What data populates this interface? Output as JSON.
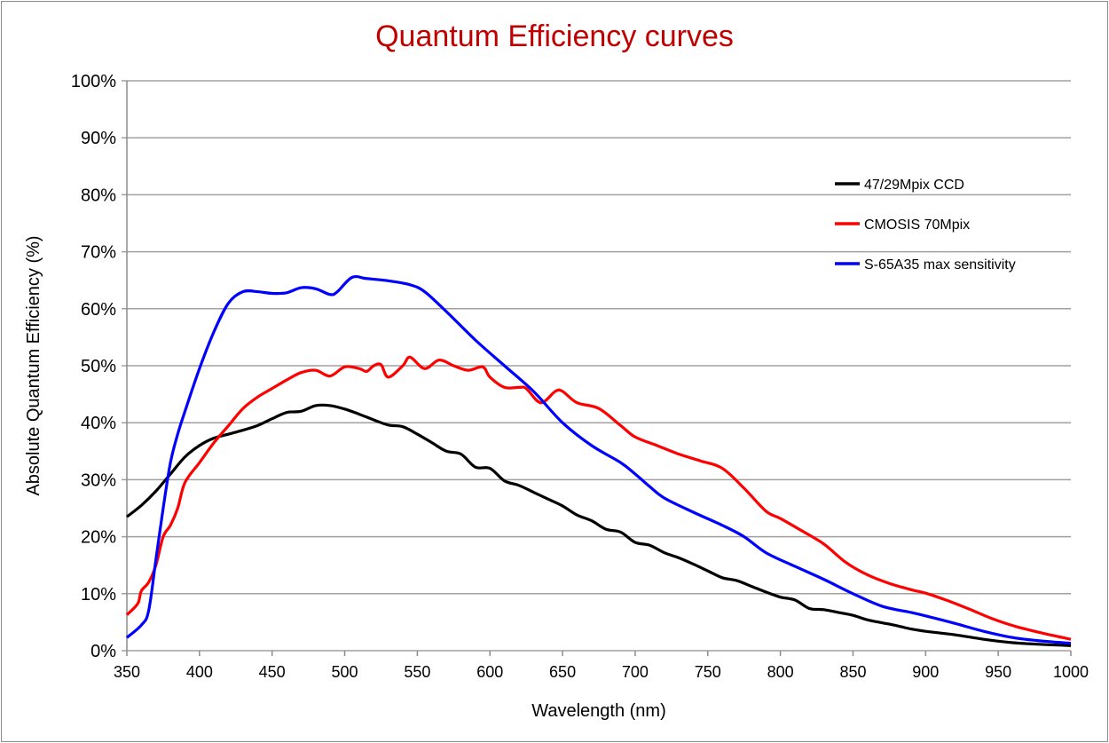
{
  "chart_data": {
    "type": "line",
    "title": "Quantum Efficiency curves",
    "xlabel": "Wavelength (nm)",
    "ylabel": "Absolute Quantum Efficiency (%)",
    "xlim": [
      350,
      1000
    ],
    "ylim": [
      0,
      100
    ],
    "x_ticks": [
      "350",
      "400",
      "450",
      "500",
      "550",
      "600",
      "650",
      "700",
      "750",
      "800",
      "850",
      "900",
      "950",
      "1000"
    ],
    "y_ticks": [
      "0%",
      "10%",
      "20%",
      "30%",
      "40%",
      "50%",
      "60%",
      "70%",
      "80%",
      "90%",
      "100%"
    ],
    "grid": "horizontal",
    "legend_position": "top-right",
    "title_color": "#c00000",
    "series": [
      {
        "name": "47/29Mpix CCD",
        "color": "#000000",
        "x": [
          350,
          360,
          370,
          380,
          390,
          400,
          410,
          420,
          430,
          440,
          450,
          460,
          470,
          480,
          490,
          500,
          510,
          520,
          530,
          540,
          550,
          560,
          570,
          580,
          590,
          600,
          610,
          620,
          630,
          640,
          650,
          660,
          670,
          680,
          690,
          700,
          710,
          720,
          730,
          740,
          750,
          760,
          770,
          780,
          790,
          800,
          810,
          820,
          830,
          840,
          850,
          860,
          870,
          880,
          890,
          900,
          920,
          940,
          960,
          980,
          1000
        ],
        "y": [
          23.5,
          25.5,
          28,
          31,
          34,
          36,
          37.3,
          38,
          38.7,
          39.5,
          40.7,
          41.8,
          42,
          43,
          43,
          42.4,
          41.5,
          40.5,
          39.6,
          39.3,
          38,
          36.5,
          35,
          34.5,
          32.2,
          32,
          29.8,
          29,
          27.8,
          26.6,
          25.4,
          23.8,
          22.8,
          21.3,
          20.8,
          19,
          18.5,
          17.2,
          16.3,
          15.2,
          14,
          12.8,
          12.3,
          11.3,
          10.3,
          9.4,
          8.9,
          7.4,
          7.2,
          6.7,
          6.2,
          5.4,
          4.9,
          4.4,
          3.8,
          3.4,
          2.8,
          2.0,
          1.4,
          1.1,
          0.9
        ]
      },
      {
        "name": "CMOSIS 70Mpix",
        "color": "#ff0000",
        "x": [
          350,
          355,
          358,
          360,
          365,
          370,
          375,
          380,
          385,
          390,
          400,
          410,
          420,
          430,
          440,
          450,
          460,
          470,
          480,
          490,
          500,
          510,
          515,
          520,
          525,
          530,
          540,
          545,
          555,
          565,
          575,
          585,
          595,
          600,
          610,
          620,
          625,
          635,
          645,
          650,
          660,
          675,
          690,
          700,
          715,
          730,
          745,
          760,
          775,
          790,
          800,
          815,
          830,
          845,
          860,
          875,
          890,
          900,
          915,
          930,
          945,
          960,
          980,
          1000
        ],
        "y": [
          6.3,
          7.5,
          8.5,
          10.5,
          12,
          15,
          20,
          22,
          25,
          29.5,
          33,
          36.5,
          39.5,
          42.5,
          44.5,
          46,
          47.5,
          48.8,
          49.2,
          48.2,
          49.8,
          49.5,
          49,
          50,
          50.2,
          48,
          50,
          51.5,
          49.5,
          51,
          50,
          49.2,
          49.8,
          48,
          46.2,
          46.2,
          46,
          43.5,
          45.5,
          45.5,
          43.5,
          42.5,
          39.5,
          37.5,
          36,
          34.5,
          33.3,
          32,
          28.5,
          24.5,
          23.2,
          21,
          18.7,
          15.5,
          13.3,
          11.8,
          10.7,
          10.1,
          8.8,
          7.3,
          5.7,
          4.4,
          3.1,
          2.0
        ]
      },
      {
        "name": "S-65A35 max sensitivity",
        "color": "#0000ff",
        "x": [
          350,
          360,
          365,
          370,
          375,
          380,
          385,
          390,
          400,
          410,
          420,
          430,
          440,
          450,
          460,
          470,
          480,
          490,
          495,
          505,
          515,
          530,
          545,
          555,
          570,
          590,
          610,
          630,
          650,
          670,
          690,
          700,
          710,
          720,
          740,
          760,
          775,
          790,
          810,
          830,
          850,
          870,
          890,
          900,
          920,
          940,
          960,
          980,
          1000
        ],
        "y": [
          2.3,
          4.5,
          7,
          16,
          25,
          33,
          38,
          42,
          49.5,
          56,
          61,
          63,
          63,
          62.7,
          62.8,
          63.7,
          63.5,
          62.5,
          63,
          65.5,
          65.3,
          64.9,
          64.2,
          63,
          59.5,
          54.5,
          50,
          45.5,
          40,
          36,
          33,
          31,
          28.8,
          26.8,
          24.3,
          22,
          20,
          17.2,
          14.8,
          12.5,
          10,
          7.8,
          6.7,
          6.1,
          4.8,
          3.4,
          2.3,
          1.7,
          1.3
        ]
      }
    ]
  }
}
